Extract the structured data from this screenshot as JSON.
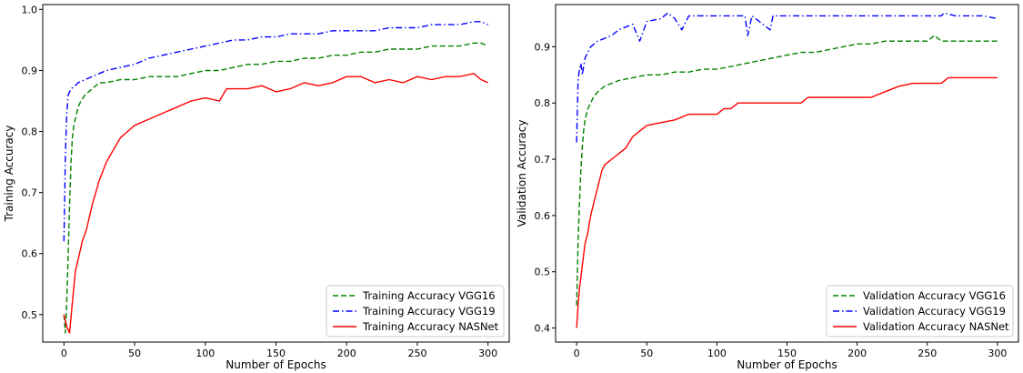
{
  "chart_data": [
    {
      "type": "line",
      "title": "",
      "xlabel": "Number of Epochs",
      "ylabel": "Training Accuracy",
      "xlim": [
        -15,
        315
      ],
      "ylim": [
        0.455,
        1.008
      ],
      "xticks": [
        0,
        50,
        100,
        150,
        200,
        250,
        300
      ],
      "xtick_labels": [
        "0",
        "50",
        "100",
        "150",
        "200",
        "250",
        "300"
      ],
      "yticks": [
        0.5,
        0.6,
        0.7,
        0.8,
        0.9,
        1.0
      ],
      "ytick_labels": [
        "0.5",
        "0.6",
        "0.7",
        "0.8",
        "0.9",
        "1.0"
      ],
      "grid": false,
      "legend_position": "bottom-right",
      "series": [
        {
          "name": "Training Accuracy VGG16",
          "color": "#008000",
          "dash": "dashed",
          "x": [
            0,
            1,
            2,
            3,
            4,
            5,
            6,
            7,
            8,
            10,
            12,
            15,
            20,
            25,
            30,
            40,
            50,
            60,
            70,
            80,
            90,
            100,
            110,
            120,
            130,
            140,
            150,
            160,
            170,
            180,
            190,
            200,
            210,
            220,
            230,
            240,
            250,
            260,
            270,
            280,
            290,
            295,
            300
          ],
          "y": [
            0.5,
            0.47,
            0.52,
            0.6,
            0.68,
            0.75,
            0.79,
            0.81,
            0.82,
            0.84,
            0.85,
            0.86,
            0.87,
            0.88,
            0.88,
            0.885,
            0.885,
            0.89,
            0.89,
            0.89,
            0.895,
            0.9,
            0.9,
            0.905,
            0.91,
            0.91,
            0.915,
            0.915,
            0.92,
            0.92,
            0.925,
            0.925,
            0.93,
            0.93,
            0.935,
            0.935,
            0.935,
            0.94,
            0.94,
            0.94,
            0.945,
            0.945,
            0.94
          ]
        },
        {
          "name": "Training Accuracy VGG19",
          "color": "#0000ff",
          "dash": "dashdot",
          "x": [
            0,
            1,
            2,
            3,
            5,
            8,
            10,
            15,
            20,
            25,
            30,
            40,
            50,
            60,
            70,
            80,
            90,
            100,
            110,
            120,
            130,
            140,
            150,
            160,
            170,
            180,
            190,
            200,
            210,
            220,
            230,
            240,
            250,
            260,
            270,
            280,
            290,
            295,
            300
          ],
          "y": [
            0.62,
            0.76,
            0.83,
            0.86,
            0.87,
            0.875,
            0.88,
            0.885,
            0.89,
            0.895,
            0.9,
            0.905,
            0.91,
            0.92,
            0.925,
            0.93,
            0.935,
            0.94,
            0.945,
            0.95,
            0.95,
            0.955,
            0.955,
            0.96,
            0.96,
            0.96,
            0.965,
            0.965,
            0.965,
            0.965,
            0.97,
            0.97,
            0.97,
            0.975,
            0.975,
            0.975,
            0.98,
            0.98,
            0.975
          ]
        },
        {
          "name": "Training Accuracy NASNet",
          "color": "#ff0000",
          "dash": "solid",
          "x": [
            0,
            2,
            4,
            6,
            8,
            10,
            13,
            16,
            20,
            25,
            30,
            35,
            40,
            45,
            50,
            60,
            70,
            80,
            90,
            100,
            110,
            115,
            120,
            130,
            140,
            150,
            160,
            170,
            180,
            190,
            200,
            210,
            220,
            230,
            240,
            250,
            260,
            270,
            280,
            290,
            295,
            300
          ],
          "y": [
            0.5,
            0.48,
            0.47,
            0.52,
            0.57,
            0.59,
            0.62,
            0.64,
            0.68,
            0.72,
            0.75,
            0.77,
            0.79,
            0.8,
            0.81,
            0.82,
            0.83,
            0.84,
            0.85,
            0.855,
            0.85,
            0.87,
            0.87,
            0.87,
            0.875,
            0.865,
            0.87,
            0.88,
            0.875,
            0.88,
            0.89,
            0.89,
            0.88,
            0.885,
            0.88,
            0.89,
            0.885,
            0.89,
            0.89,
            0.895,
            0.885,
            0.88
          ]
        }
      ]
    },
    {
      "type": "line",
      "title": "",
      "xlabel": "Number of Epochs",
      "ylabel": "Validation Accuracy",
      "xlim": [
        -15,
        315
      ],
      "ylim": [
        0.375,
        0.975
      ],
      "xticks": [
        0,
        50,
        100,
        150,
        200,
        250,
        300
      ],
      "xtick_labels": [
        "0",
        "50",
        "100",
        "150",
        "200",
        "250",
        "300"
      ],
      "yticks": [
        0.4,
        0.5,
        0.6,
        0.7,
        0.8,
        0.9
      ],
      "ytick_labels": [
        "0.4",
        "0.5",
        "0.6",
        "0.7",
        "0.8",
        "0.9"
      ],
      "grid": false,
      "legend_position": "bottom-right",
      "series": [
        {
          "name": "Validation Accuracy VGG16",
          "color": "#008000",
          "dash": "dashed",
          "x": [
            0,
            1,
            2,
            3,
            4,
            5,
            6,
            8,
            10,
            12,
            15,
            20,
            25,
            30,
            40,
            50,
            60,
            70,
            80,
            90,
            100,
            110,
            120,
            130,
            140,
            150,
            160,
            170,
            180,
            190,
            200,
            210,
            220,
            230,
            240,
            250,
            255,
            260,
            270,
            280,
            290,
            300
          ],
          "y": [
            0.44,
            0.55,
            0.62,
            0.68,
            0.72,
            0.75,
            0.77,
            0.79,
            0.8,
            0.81,
            0.82,
            0.83,
            0.835,
            0.84,
            0.845,
            0.85,
            0.85,
            0.855,
            0.855,
            0.86,
            0.86,
            0.865,
            0.87,
            0.875,
            0.88,
            0.885,
            0.89,
            0.89,
            0.895,
            0.9,
            0.905,
            0.905,
            0.91,
            0.91,
            0.91,
            0.91,
            0.92,
            0.91,
            0.91,
            0.91,
            0.91,
            0.91
          ]
        },
        {
          "name": "Validation Accuracy VGG19",
          "color": "#0000ff",
          "dash": "dashdot",
          "x": [
            0,
            1,
            2,
            3,
            4,
            6,
            8,
            10,
            15,
            20,
            25,
            30,
            40,
            45,
            50,
            60,
            65,
            70,
            75,
            80,
            100,
            120,
            122,
            125,
            138,
            140,
            160,
            180,
            200,
            220,
            240,
            260,
            262,
            270,
            280,
            290,
            300
          ],
          "y": [
            0.73,
            0.84,
            0.86,
            0.87,
            0.85,
            0.88,
            0.89,
            0.9,
            0.91,
            0.915,
            0.92,
            0.93,
            0.94,
            0.91,
            0.945,
            0.95,
            0.96,
            0.95,
            0.93,
            0.955,
            0.955,
            0.955,
            0.92,
            0.955,
            0.93,
            0.955,
            0.955,
            0.955,
            0.955,
            0.955,
            0.955,
            0.955,
            0.96,
            0.955,
            0.955,
            0.955,
            0.95
          ]
        },
        {
          "name": "Validation Accuracy NASNet",
          "color": "#ff0000",
          "dash": "solid",
          "x": [
            0,
            1,
            2,
            3,
            4,
            5,
            6,
            8,
            10,
            12,
            15,
            18,
            20,
            25,
            30,
            35,
            40,
            45,
            50,
            60,
            70,
            75,
            80,
            100,
            105,
            110,
            115,
            140,
            160,
            165,
            180,
            200,
            210,
            220,
            230,
            240,
            250,
            260,
            265,
            280,
            300
          ],
          "y": [
            0.4,
            0.44,
            0.47,
            0.49,
            0.51,
            0.53,
            0.55,
            0.57,
            0.6,
            0.62,
            0.65,
            0.68,
            0.69,
            0.7,
            0.71,
            0.72,
            0.74,
            0.75,
            0.76,
            0.765,
            0.77,
            0.775,
            0.78,
            0.78,
            0.79,
            0.79,
            0.8,
            0.8,
            0.8,
            0.81,
            0.81,
            0.81,
            0.81,
            0.82,
            0.83,
            0.835,
            0.835,
            0.835,
            0.845,
            0.845,
            0.845
          ]
        }
      ]
    }
  ]
}
